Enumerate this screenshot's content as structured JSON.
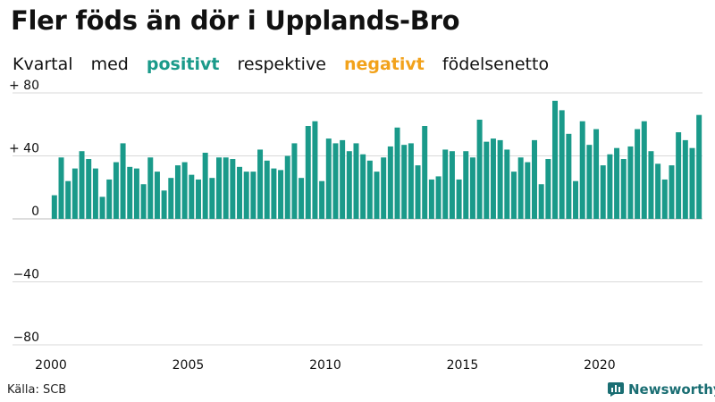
{
  "header": {
    "title": "Fler föds än dör i Upplands-Bro",
    "subtitle_words": [
      "Kvartal",
      "med"
    ],
    "positive_word": "positivt",
    "middle_word": "respektive",
    "negative_word": "negativt",
    "end_word": "födelsenetto"
  },
  "footer": {
    "source": "Källa: SCB",
    "brand": "Newsworthy",
    "brand_icon": "newsworthy-logo-icon"
  },
  "colors": {
    "positive": "#1a9a8a",
    "negative": "#f2a21b",
    "brand": "#1a6e73"
  },
  "chart_data": {
    "type": "bar",
    "title": "Fler föds än dör i Upplands-Bro",
    "subtitle": "Kvartal med positivt respektive negativt födelsenetto",
    "ylim": [
      -80,
      80
    ],
    "y_ticks": [
      80,
      40,
      0,
      -40,
      -80
    ],
    "y_tick_labels": [
      "+ 80",
      "+ 40",
      "0",
      "−40",
      "−80"
    ],
    "x_tick_years": [
      2000,
      2005,
      2010,
      2015,
      2020
    ],
    "x_tick_labels": [
      "2000",
      "2005",
      "2010",
      "2015",
      "2020"
    ],
    "start_year": 2000,
    "grid": true,
    "values": [
      15,
      39,
      24,
      32,
      43,
      38,
      32,
      14,
      25,
      36,
      48,
      33,
      32,
      22,
      39,
      30,
      18,
      26,
      34,
      36,
      28,
      25,
      42,
      26,
      39,
      39,
      38,
      33,
      30,
      30,
      44,
      37,
      32,
      31,
      40,
      48,
      26,
      59,
      62,
      24,
      51,
      48,
      50,
      43,
      48,
      41,
      37,
      30,
      39,
      46,
      58,
      47,
      48,
      34,
      59,
      25,
      27,
      44,
      43,
      25,
      43,
      39,
      63,
      49,
      51,
      50,
      44,
      30,
      39,
      36,
      50,
      22,
      38,
      75,
      69,
      54,
      24,
      62,
      47,
      57,
      34,
      41,
      45,
      38,
      46,
      57,
      62,
      43,
      35,
      25,
      34,
      55,
      50,
      45,
      66
    ]
  }
}
